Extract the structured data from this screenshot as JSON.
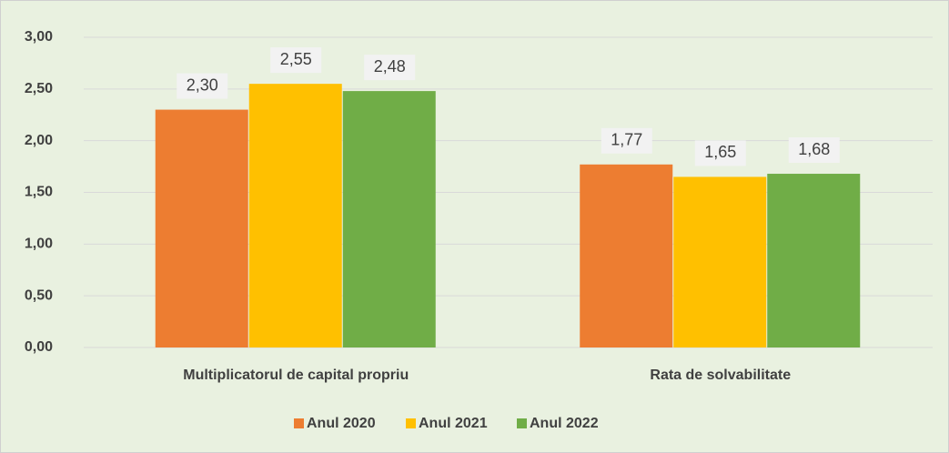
{
  "chart_data": {
    "type": "bar",
    "categories": [
      "Multiplicatorul de capital propriu",
      "Rata de solvabilitate"
    ],
    "series": [
      {
        "name": "Anul 2020",
        "color": "#ed7d31",
        "values": [
          2.3,
          1.77
        ],
        "value_labels": [
          "2,30",
          "1,77"
        ]
      },
      {
        "name": "Anul 2021",
        "color": "#ffc000",
        "values": [
          2.55,
          1.65
        ],
        "value_labels": [
          "2,55",
          "1,65"
        ]
      },
      {
        "name": "Anul 2022",
        "color": "#70ad47",
        "values": [
          2.48,
          1.68
        ],
        "value_labels": [
          "2,48",
          "1,68"
        ]
      }
    ],
    "ylim": [
      0,
      3
    ],
    "yticks": [
      {
        "value": 0,
        "label": "0,00"
      },
      {
        "value": 0.5,
        "label": "0,50"
      },
      {
        "value": 1,
        "label": "1,00"
      },
      {
        "value": 1.5,
        "label": "1,50"
      },
      {
        "value": 2,
        "label": "2,00"
      },
      {
        "value": 2.5,
        "label": "2,50"
      },
      {
        "value": 3,
        "label": "3,00"
      }
    ],
    "grid": true,
    "legend": "bottom"
  }
}
